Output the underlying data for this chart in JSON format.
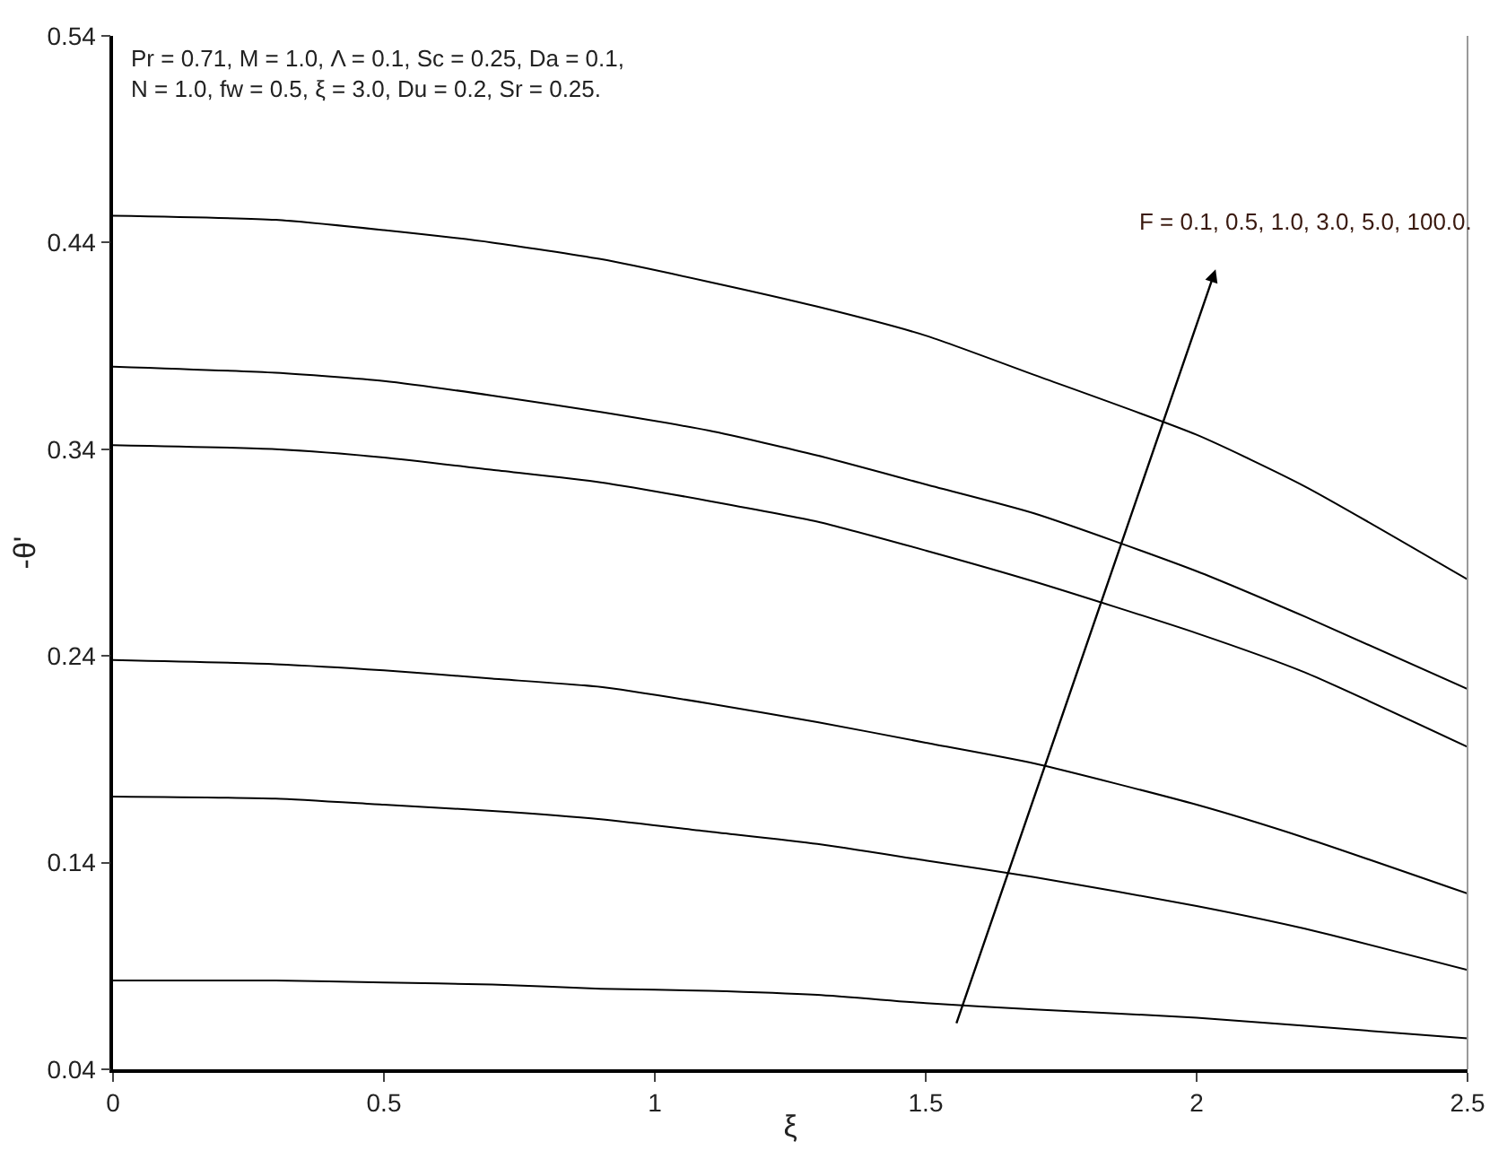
{
  "chart_data": {
    "type": "line",
    "xlabel": "ξ",
    "ylabel": "-θ'",
    "x": [
      0,
      0.3,
      0.5,
      0.7,
      0.9,
      1.1,
      1.3,
      1.5,
      1.7,
      2.0,
      2.2,
      2.5
    ],
    "series": [
      {
        "color": "#000000",
        "values": [
          0.453,
          0.451,
          0.446,
          0.44,
          0.432,
          0.421,
          0.409,
          0.395,
          0.376,
          0.347,
          0.322,
          0.277
        ]
      },
      {
        "color": "#000000",
        "values": [
          0.38,
          0.377,
          0.373,
          0.366,
          0.358,
          0.349,
          0.337,
          0.323,
          0.309,
          0.281,
          0.259,
          0.224
        ]
      },
      {
        "color": "#000000",
        "values": [
          0.342,
          0.34,
          0.336,
          0.33,
          0.324,
          0.315,
          0.305,
          0.291,
          0.276,
          0.251,
          0.232,
          0.196
        ]
      },
      {
        "color": "#000000",
        "values": [
          0.238,
          0.236,
          0.233,
          0.229,
          0.225,
          0.217,
          0.208,
          0.198,
          0.188,
          0.168,
          0.152,
          0.125
        ]
      },
      {
        "color": "#000000",
        "values": [
          0.172,
          0.171,
          0.168,
          0.165,
          0.161,
          0.155,
          0.149,
          0.141,
          0.133,
          0.119,
          0.108,
          0.088
        ]
      },
      {
        "color": "#000000",
        "values": [
          0.083,
          0.083,
          0.082,
          0.081,
          0.079,
          0.078,
          0.076,
          0.072,
          0.069,
          0.065,
          0.061,
          0.055
        ]
      }
    ],
    "xlim": [
      0,
      2.5
    ],
    "xticks": [
      0,
      0.5,
      1,
      1.5,
      2,
      2.5
    ],
    "ylim": [
      0.04,
      0.54
    ],
    "yticks": [
      0.04,
      0.14,
      0.24,
      0.34,
      0.44,
      0.54
    ],
    "annotations": [
      "Pr = 0.71, M = 1.0, Λ = 0.1, Sc = 0.25, Da = 0.1,\nN = 1.0, fw = 0.5, ξ = 3.0, Du = 0.2, Sr = 0.25.",
      "F = 0.1, 0.5, 1.0, 3.0, 5.0, 100.0."
    ],
    "marker": "none",
    "line_style": "solid"
  }
}
